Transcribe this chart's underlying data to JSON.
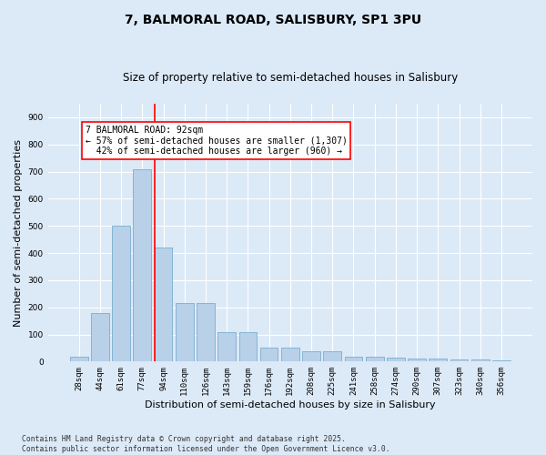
{
  "title1": "7, BALMORAL ROAD, SALISBURY, SP1 3PU",
  "title2": "Size of property relative to semi-detached houses in Salisbury",
  "xlabel": "Distribution of semi-detached houses by size in Salisbury",
  "ylabel": "Number of semi-detached properties",
  "categories": [
    "28sqm",
    "44sqm",
    "61sqm",
    "77sqm",
    "94sqm",
    "110sqm",
    "126sqm",
    "143sqm",
    "159sqm",
    "176sqm",
    "192sqm",
    "208sqm",
    "225sqm",
    "241sqm",
    "258sqm",
    "274sqm",
    "290sqm",
    "307sqm",
    "323sqm",
    "340sqm",
    "356sqm"
  ],
  "values": [
    18,
    180,
    500,
    710,
    420,
    215,
    215,
    110,
    110,
    52,
    52,
    37,
    37,
    18,
    18,
    15,
    12,
    10,
    8,
    8,
    5
  ],
  "bar_color": "#b8d0e8",
  "bar_edge_color": "#7aaed0",
  "annotation_text1": "7 BALMORAL ROAD: 92sqm",
  "annotation_text2": "← 57% of semi-detached houses are smaller (1,307)",
  "annotation_text3": "42% of semi-detached houses are larger (960) →",
  "vline_color": "red",
  "vline_x_index": 3.575,
  "ylim": [
    0,
    950
  ],
  "yticks": [
    0,
    100,
    200,
    300,
    400,
    500,
    600,
    700,
    800,
    900
  ],
  "footer1": "Contains HM Land Registry data © Crown copyright and database right 2025.",
  "footer2": "Contains public sector information licensed under the Open Government Licence v3.0.",
  "bg_color": "#dce9f7",
  "plot_bg_color": "#dce9f7",
  "grid_color": "#ffffff",
  "title_fontsize": 10,
  "subtitle_fontsize": 8.5,
  "tick_fontsize": 6.5,
  "label_fontsize": 8,
  "footer_fontsize": 5.8,
  "annot_fontsize": 7
}
